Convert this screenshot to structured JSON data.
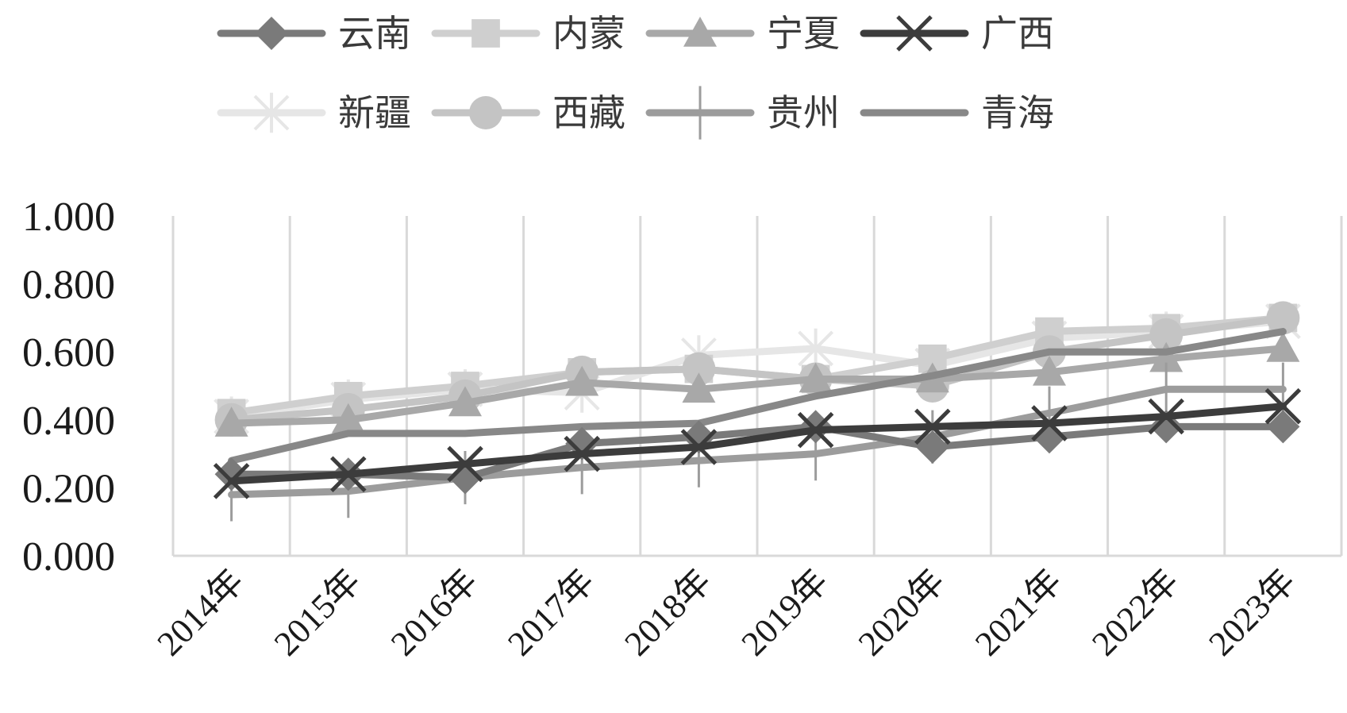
{
  "chart_data": {
    "type": "line",
    "categories": [
      "2014年",
      "2015年",
      "2016年",
      "2017年",
      "2018年",
      "2019年",
      "2020年",
      "2021年",
      "2022年",
      "2023年"
    ],
    "ylim": [
      0,
      1.0
    ],
    "yticks": [
      "0.000",
      "0.200",
      "0.400",
      "0.600",
      "0.800",
      "1.000"
    ],
    "grid": "vertical",
    "legend_position": "top",
    "series": [
      {
        "name": "云南",
        "marker": "diamond",
        "color": "#7a7a7a",
        "values": [
          0.24,
          0.24,
          0.23,
          0.33,
          0.35,
          0.38,
          0.32,
          0.35,
          0.38,
          0.38
        ]
      },
      {
        "name": "内蒙",
        "marker": "square",
        "color": "#cfcfcf",
        "values": [
          0.42,
          0.47,
          0.5,
          0.54,
          0.55,
          0.52,
          0.58,
          0.66,
          0.67,
          0.7
        ]
      },
      {
        "name": "宁夏",
        "marker": "triangle",
        "color": "#a8a8a8",
        "values": [
          0.39,
          0.4,
          0.45,
          0.51,
          0.49,
          0.52,
          0.52,
          0.54,
          0.58,
          0.61
        ]
      },
      {
        "name": "广西",
        "marker": "x",
        "color": "#3c3c3c",
        "values": [
          0.22,
          0.24,
          0.27,
          0.3,
          0.32,
          0.37,
          0.38,
          0.39,
          0.41,
          0.44
        ]
      },
      {
        "name": "新疆",
        "marker": "star",
        "color": "#e6e6e6",
        "values": [
          0.41,
          0.46,
          0.49,
          0.48,
          0.59,
          0.61,
          0.56,
          0.64,
          0.66,
          0.69
        ]
      },
      {
        "name": "西藏",
        "marker": "circle",
        "color": "#c4c4c4",
        "values": [
          0.4,
          0.43,
          0.47,
          0.54,
          0.55,
          0.52,
          0.5,
          0.6,
          0.65,
          0.7
        ]
      },
      {
        "name": "贵州",
        "marker": "plus",
        "color": "#9c9c9c",
        "values": [
          0.18,
          0.19,
          0.23,
          0.26,
          0.28,
          0.3,
          0.35,
          0.42,
          0.49,
          0.49
        ]
      },
      {
        "name": "青海",
        "marker": "none",
        "color": "#888888",
        "values": [
          0.28,
          0.36,
          0.36,
          0.38,
          0.39,
          0.47,
          0.53,
          0.6,
          0.6,
          0.66
        ]
      }
    ]
  }
}
